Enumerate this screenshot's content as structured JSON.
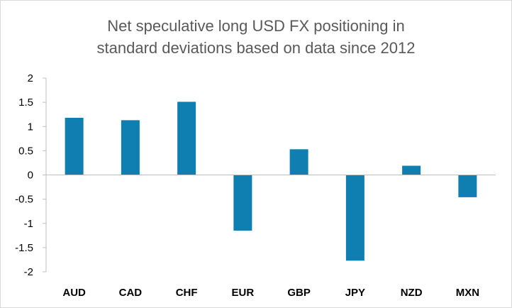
{
  "chart_data": {
    "type": "bar",
    "title_lines": [
      "Net speculative long USD FX positioning in",
      "standard deviations based on data since 2012"
    ],
    "categories": [
      "AUD",
      "CAD",
      "CHF",
      "EUR",
      "GBP",
      "JPY",
      "NZD",
      "MXN"
    ],
    "values": [
      1.18,
      1.13,
      1.51,
      -1.15,
      0.53,
      -1.77,
      0.19,
      -0.46
    ],
    "ylim": [
      -2,
      2
    ],
    "yticks": [
      "2",
      "1.5",
      "1",
      "0.5",
      "0",
      "-0.5",
      "-1",
      "-1.5",
      "-2"
    ],
    "grid": false,
    "legend": "none",
    "bar_color": "#0e7fb0",
    "axis_color": "#bfbfbf"
  }
}
